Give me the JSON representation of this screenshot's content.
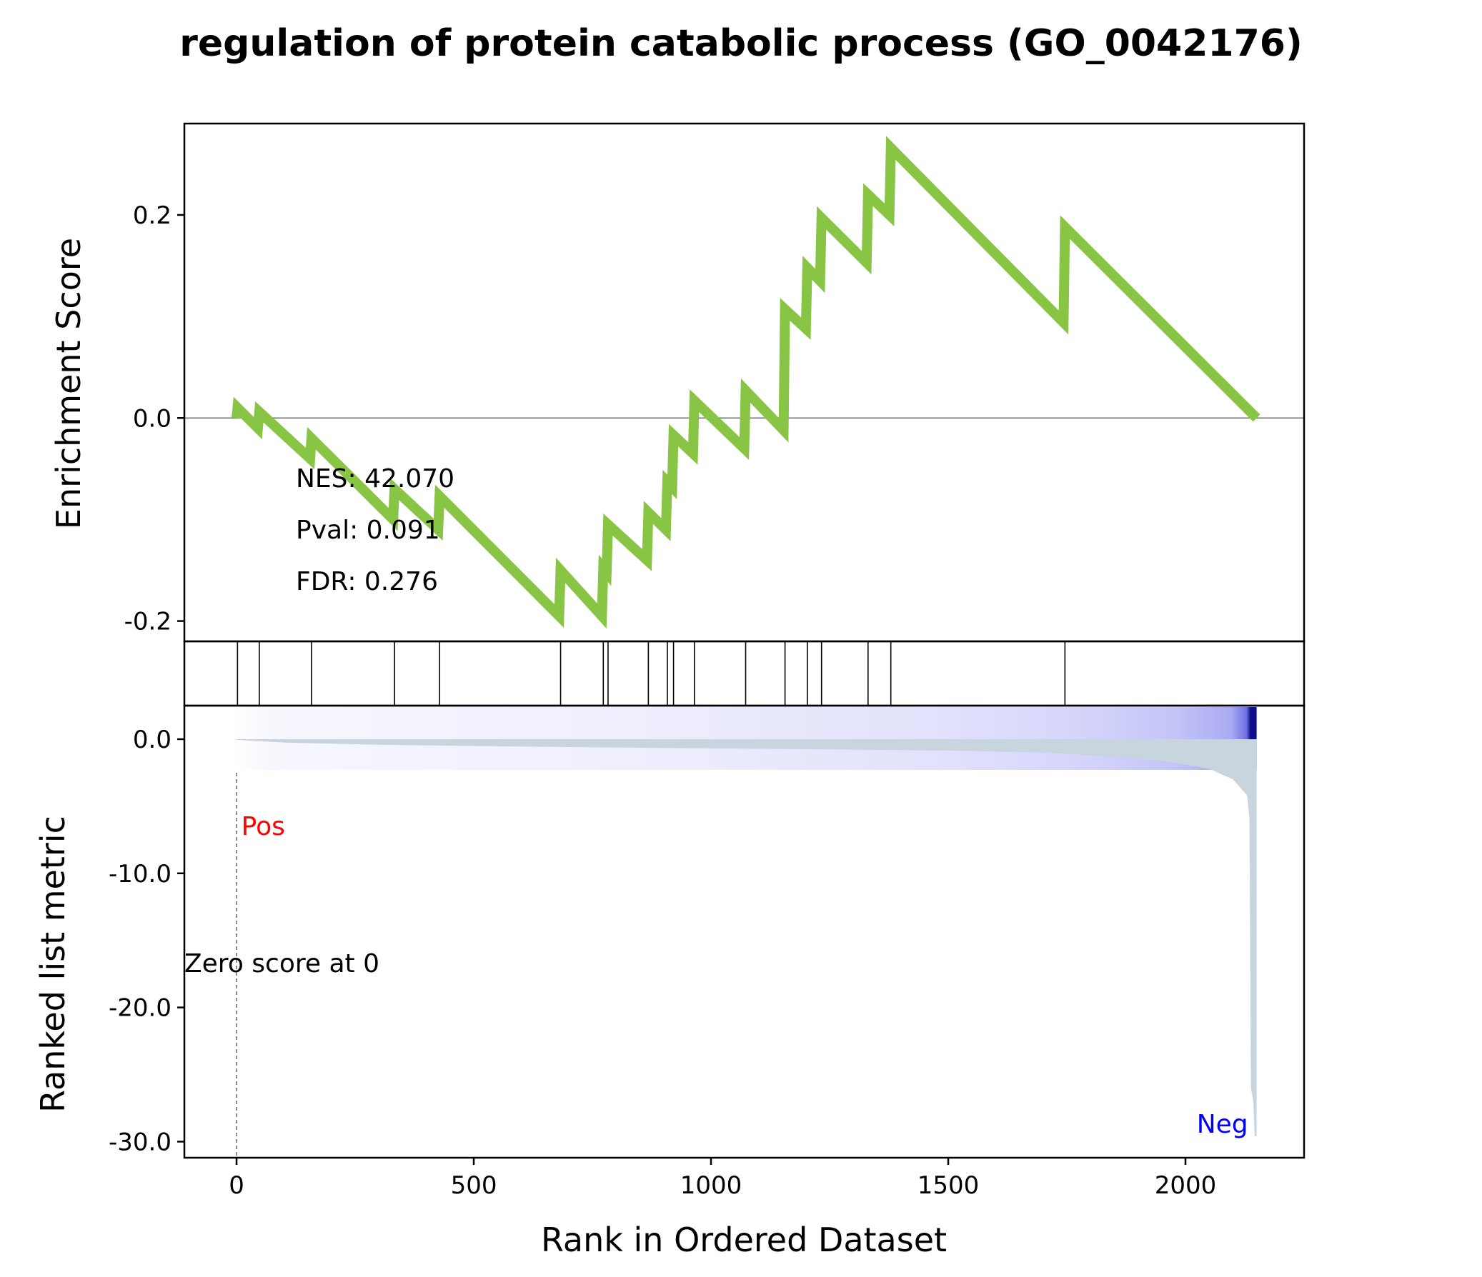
{
  "chart_data": {
    "type": "line",
    "title": "regulation of protein catabolic process (GO_0042176)",
    "xlabel": "Rank in Ordered Dataset",
    "enrichment_panel": {
      "ylabel": "Enrichment Score",
      "ylim": [
        -0.22,
        0.29
      ],
      "yticks": [
        {
          "value": 0.2,
          "label": "0.2"
        },
        {
          "value": 0.0,
          "label": "0.0"
        },
        {
          "value": -0.2,
          "label": "-0.2"
        }
      ],
      "line_color": "#88c544",
      "zero_line": true,
      "running_es": [
        {
          "x": 0,
          "y": 0.0
        },
        {
          "x": 2,
          "y": 0.01
        },
        {
          "x": 45,
          "y": -0.01
        },
        {
          "x": 48,
          "y": 0.006
        },
        {
          "x": 155,
          "y": -0.04
        },
        {
          "x": 158,
          "y": -0.02
        },
        {
          "x": 330,
          "y": -0.1
        },
        {
          "x": 333,
          "y": -0.07
        },
        {
          "x": 425,
          "y": -0.11
        },
        {
          "x": 428,
          "y": -0.077
        },
        {
          "x": 680,
          "y": -0.195
        },
        {
          "x": 683,
          "y": -0.15
        },
        {
          "x": 770,
          "y": -0.195
        },
        {
          "x": 773,
          "y": -0.148
        },
        {
          "x": 780,
          "y": -0.152
        },
        {
          "x": 783,
          "y": -0.105
        },
        {
          "x": 865,
          "y": -0.14
        },
        {
          "x": 868,
          "y": -0.093
        },
        {
          "x": 905,
          "y": -0.11
        },
        {
          "x": 908,
          "y": -0.063
        },
        {
          "x": 918,
          "y": -0.068
        },
        {
          "x": 921,
          "y": -0.017
        },
        {
          "x": 962,
          "y": -0.035
        },
        {
          "x": 965,
          "y": 0.017
        },
        {
          "x": 1070,
          "y": -0.03
        },
        {
          "x": 1073,
          "y": 0.027
        },
        {
          "x": 1153,
          "y": -0.012
        },
        {
          "x": 1156,
          "y": 0.107
        },
        {
          "x": 1200,
          "y": 0.088
        },
        {
          "x": 1203,
          "y": 0.148
        },
        {
          "x": 1230,
          "y": 0.135
        },
        {
          "x": 1233,
          "y": 0.197
        },
        {
          "x": 1328,
          "y": 0.153
        },
        {
          "x": 1331,
          "y": 0.22
        },
        {
          "x": 1376,
          "y": 0.2
        },
        {
          "x": 1379,
          "y": 0.266
        },
        {
          "x": 1743,
          "y": 0.094
        },
        {
          "x": 1746,
          "y": 0.188
        },
        {
          "x": 2150,
          "y": 0.0
        }
      ],
      "annotations": [
        {
          "key": "nes",
          "text": "NES: 42.070"
        },
        {
          "key": "pval",
          "text": "Pval: 0.091"
        },
        {
          "key": "fdr",
          "text": "FDR: 0.276"
        }
      ]
    },
    "hits": [
      2,
      48,
      158,
      333,
      428,
      683,
      773,
      783,
      868,
      908,
      921,
      965,
      1073,
      1156,
      1203,
      1233,
      1331,
      1379,
      1746
    ],
    "ranked_panel": {
      "ylabel": "Ranked list metric",
      "ylim": [
        -31.2,
        2.5
      ],
      "yticks": [
        {
          "value": 0.0,
          "label": "0.0"
        },
        {
          "value": -10.0,
          "label": "-10.0"
        },
        {
          "value": -20.0,
          "label": "-20.0"
        },
        {
          "value": -30.0,
          "label": "-30.0"
        }
      ],
      "fill_color": "#c8d4de",
      "metric_curve": [
        {
          "x": 0,
          "y": -0.05
        },
        {
          "x": 100,
          "y": -0.25
        },
        {
          "x": 300,
          "y": -0.42
        },
        {
          "x": 600,
          "y": -0.55
        },
        {
          "x": 900,
          "y": -0.65
        },
        {
          "x": 1200,
          "y": -0.75
        },
        {
          "x": 1500,
          "y": -0.85
        },
        {
          "x": 1700,
          "y": -1.0
        },
        {
          "x": 1850,
          "y": -1.3
        },
        {
          "x": 1950,
          "y": -1.6
        },
        {
          "x": 2050,
          "y": -2.2
        },
        {
          "x": 2100,
          "y": -3.0
        },
        {
          "x": 2120,
          "y": -3.8
        },
        {
          "x": 2130,
          "y": -4.2
        },
        {
          "x": 2135,
          "y": -6.0
        },
        {
          "x": 2138,
          "y": -26.0
        },
        {
          "x": 2143,
          "y": -27.0
        },
        {
          "x": 2146,
          "y": -29.6
        },
        {
          "x": 2150,
          "y": -29.6
        }
      ],
      "zero_cross_label": "Zero score at 0",
      "pos_label": "Pos",
      "neg_label": "Neg",
      "pos_color": "#ff0000",
      "neg_color": "#0000ff"
    },
    "xlim": [
      -110,
      2250
    ],
    "xticks": [
      {
        "value": 0,
        "label": "0"
      },
      {
        "value": 500,
        "label": "500"
      },
      {
        "value": 1000,
        "label": "1000"
      },
      {
        "value": 1500,
        "label": "1500"
      },
      {
        "value": 2000,
        "label": "2000"
      }
    ],
    "n_genes": 2150
  }
}
